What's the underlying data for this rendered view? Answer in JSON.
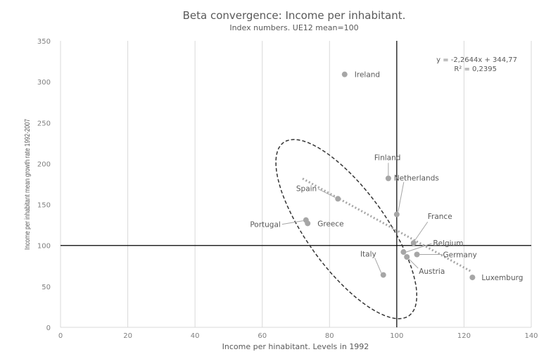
{
  "chart_data": {
    "type": "scatter",
    "title": "Beta convergence: Income per inhabitant.",
    "subtitle": "Index numbers. UE12 mean=100",
    "xlabel": "Income per hinabitant. Levels in 1992",
    "ylabel": "Income per inhabitant mean growth rate 1992-2007",
    "xlim": [
      0,
      140
    ],
    "ylim": [
      0,
      350
    ],
    "x_ticks": [
      "0",
      "20",
      "40",
      "60",
      "80",
      "100",
      "120",
      "140"
    ],
    "y_ticks": [
      "0",
      "50",
      "100",
      "150",
      "200",
      "250",
      "300",
      "350"
    ],
    "grid": "vertical",
    "reference_lines": {
      "x": 100,
      "y": 100
    },
    "points": [
      {
        "label": "Ireland",
        "x": 84.5,
        "y": 309
      },
      {
        "label": "Finland",
        "x": 97.5,
        "y": 182
      },
      {
        "label": "Netherlands",
        "x": 100,
        "y": 138
      },
      {
        "label": "Spain",
        "x": 82.5,
        "y": 157
      },
      {
        "label": "Portugal",
        "x": 73,
        "y": 131
      },
      {
        "label": "Greece",
        "x": 73.5,
        "y": 127
      },
      {
        "label": "France",
        "x": 105,
        "y": 103
      },
      {
        "label": "Belgium",
        "x": 102,
        "y": 92
      },
      {
        "label": "Germany",
        "x": 106,
        "y": 89
      },
      {
        "label": "Austria",
        "x": 103,
        "y": 86
      },
      {
        "label": "Italy",
        "x": 96,
        "y": 64
      },
      {
        "label": "Luxemburg",
        "x": 122.5,
        "y": 61
      }
    ],
    "trendline": {
      "equation": "y = -2,2644x + 344,77",
      "r2": "R² = 0,2395",
      "slope": -2.2644,
      "intercept": 344.77,
      "x_range": [
        72,
        122
      ]
    },
    "annotation_ellipse": {
      "center": [
        85,
        120
      ],
      "note": "dashed ellipse around Spain, Portugal, Greece, Italy"
    },
    "colors": {
      "points": "#a6a6a6",
      "trend": "#a6a6a6",
      "grid": "#d9d9d9",
      "axes": "#000000"
    }
  }
}
